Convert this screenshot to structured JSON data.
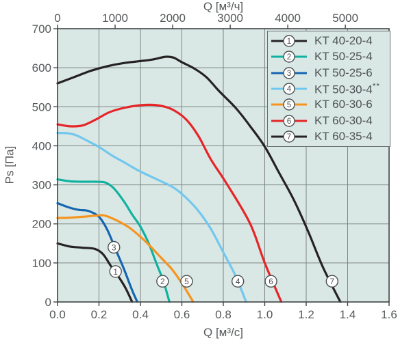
{
  "styles": {
    "page_bg": "#ffffff",
    "plot_bg": "#d9e8e4",
    "grid_color": "#7d8384",
    "border_color": "#3f4344",
    "text_color": "#55585a",
    "marker_fill": "#ffffff",
    "marker_stroke": "#4d5052",
    "legend_bg": "#d9e8e4",
    "legend_border": "#6a6e6f"
  },
  "chart_data": {
    "type": "line",
    "title": "",
    "grid": true,
    "legend_position": "top-right",
    "top_axis": {
      "title": "Q [м³/ч]",
      "units_per_bottom_unit": 3600,
      "tick_values": [
        0,
        1000,
        2000,
        3000,
        4000,
        5000
      ],
      "tick_labels": [
        "0",
        "1000",
        "2000",
        "3000",
        "4000",
        "5000"
      ]
    },
    "bottom_axis": {
      "title": "Q [м³/с]",
      "range": [
        0,
        1.6
      ],
      "tick_values": [
        0,
        0.2,
        0.4,
        0.6,
        0.8,
        1.0,
        1.2,
        1.4,
        1.6
      ],
      "tick_labels": [
        "0.0",
        "0.2",
        "0.4",
        "0.6",
        "0.8",
        "1.0",
        "1.2",
        "1.4",
        "1.6"
      ]
    },
    "left_axis": {
      "title": "Ps [Па]",
      "range": [
        0,
        700
      ],
      "tick_values": [
        0,
        100,
        200,
        300,
        400,
        500,
        600,
        700
      ],
      "tick_labels": [
        "0",
        "100",
        "200",
        "300",
        "400",
        "500",
        "600",
        "700"
      ]
    },
    "series": [
      {
        "num": "1",
        "label": "KT 40-20-4",
        "color": "#262223",
        "points": [
          [
            0,
            150
          ],
          [
            0.06,
            142
          ],
          [
            0.12,
            139
          ],
          [
            0.18,
            136
          ],
          [
            0.22,
            122
          ],
          [
            0.26,
            90
          ],
          [
            0.3,
            60
          ],
          [
            0.33,
            34
          ],
          [
            0.36,
            0
          ]
        ],
        "marker": {
          "x": 0.28,
          "y": 78
        }
      },
      {
        "num": "2",
        "label": "KT 50-25-4",
        "color": "#11b1a0",
        "points": [
          [
            0,
            314
          ],
          [
            0.06,
            309
          ],
          [
            0.12,
            308
          ],
          [
            0.18,
            308
          ],
          [
            0.23,
            306
          ],
          [
            0.27,
            292
          ],
          [
            0.32,
            258
          ],
          [
            0.36,
            224
          ],
          [
            0.4,
            193
          ],
          [
            0.44,
            150
          ],
          [
            0.48,
            95
          ],
          [
            0.51,
            55
          ],
          [
            0.54,
            0
          ]
        ],
        "marker": {
          "x": 0.507,
          "y": 53
        }
      },
      {
        "num": "3",
        "label": "KT 50-25-6",
        "color": "#1565b1",
        "points": [
          [
            0,
            253
          ],
          [
            0.05,
            243
          ],
          [
            0.1,
            236
          ],
          [
            0.15,
            233
          ],
          [
            0.2,
            218
          ],
          [
            0.24,
            185
          ],
          [
            0.28,
            135
          ],
          [
            0.32,
            85
          ],
          [
            0.36,
            30
          ],
          [
            0.385,
            0
          ]
        ],
        "marker": {
          "x": 0.272,
          "y": 140
        }
      },
      {
        "num": "4",
        "label": "KT 50-30-4**",
        "color": "#72c7ee",
        "points": [
          [
            0,
            433
          ],
          [
            0.05,
            432
          ],
          [
            0.09,
            427
          ],
          [
            0.14,
            414
          ],
          [
            0.2,
            397
          ],
          [
            0.26,
            376
          ],
          [
            0.32,
            358
          ],
          [
            0.4,
            334
          ],
          [
            0.48,
            314
          ],
          [
            0.56,
            293
          ],
          [
            0.62,
            267
          ],
          [
            0.68,
            233
          ],
          [
            0.74,
            187
          ],
          [
            0.8,
            127
          ],
          [
            0.86,
            66
          ],
          [
            0.91,
            0
          ]
        ],
        "marker": {
          "x": 0.87,
          "y": 53
        }
      },
      {
        "num": "5",
        "label": "KT 60-30-6",
        "color": "#f5941e",
        "points": [
          [
            0,
            215
          ],
          [
            0.06,
            216
          ],
          [
            0.12,
            218
          ],
          [
            0.18,
            221
          ],
          [
            0.22,
            222
          ],
          [
            0.26,
            215
          ],
          [
            0.3,
            205
          ],
          [
            0.35,
            189
          ],
          [
            0.4,
            167
          ],
          [
            0.44,
            147
          ],
          [
            0.5,
            113
          ],
          [
            0.55,
            85
          ],
          [
            0.6,
            48
          ],
          [
            0.655,
            0
          ]
        ],
        "marker": {
          "x": 0.623,
          "y": 53
        }
      },
      {
        "num": "6",
        "label": "KT 60-30-4",
        "color": "#e62528",
        "points": [
          [
            0,
            455
          ],
          [
            0.06,
            450
          ],
          [
            0.12,
            452
          ],
          [
            0.18,
            466
          ],
          [
            0.25,
            486
          ],
          [
            0.32,
            497
          ],
          [
            0.4,
            504
          ],
          [
            0.48,
            504
          ],
          [
            0.55,
            494
          ],
          [
            0.62,
            468
          ],
          [
            0.68,
            425
          ],
          [
            0.74,
            365
          ],
          [
            0.82,
            300
          ],
          [
            0.93,
            200
          ],
          [
            1.0,
            100
          ],
          [
            1.08,
            0
          ]
        ],
        "marker": {
          "x": 1.03,
          "y": 53
        }
      },
      {
        "num": "7",
        "label": "KT 60-35-4",
        "color": "#262223",
        "points": [
          [
            0,
            560
          ],
          [
            0.08,
            576
          ],
          [
            0.16,
            592
          ],
          [
            0.24,
            604
          ],
          [
            0.32,
            612
          ],
          [
            0.4,
            617
          ],
          [
            0.46,
            621
          ],
          [
            0.52,
            628
          ],
          [
            0.56,
            626
          ],
          [
            0.6,
            614
          ],
          [
            0.66,
            598
          ],
          [
            0.72,
            575
          ],
          [
            0.78,
            540
          ],
          [
            0.86,
            497
          ],
          [
            0.93,
            450
          ],
          [
            1.0,
            398
          ],
          [
            1.07,
            330
          ],
          [
            1.14,
            262
          ],
          [
            1.21,
            180
          ],
          [
            1.28,
            90
          ],
          [
            1.365,
            0
          ]
        ],
        "marker": {
          "x": 1.325,
          "y": 53
        }
      }
    ]
  }
}
